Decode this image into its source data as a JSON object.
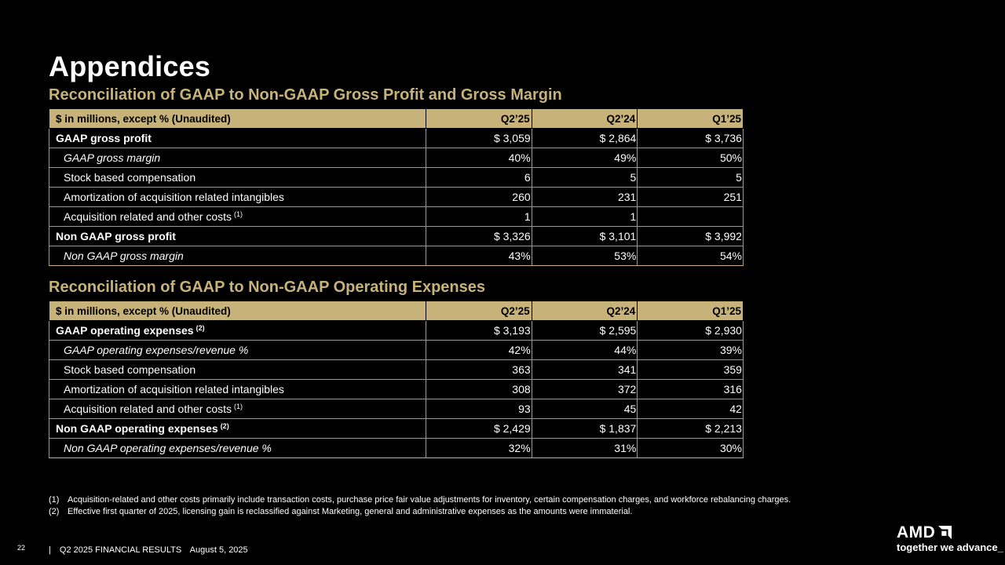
{
  "title": "Appendices",
  "section1": {
    "title": "Reconciliation of GAAP to Non-GAAP Gross Profit and Gross Margin",
    "header": [
      "$ in millions, except % (Unaudited)",
      "Q2’25",
      "Q2’24",
      "Q1’25"
    ],
    "rows": [
      {
        "label": "GAAP gross profit",
        "sup": "",
        "v1": "$ 3,059",
        "v2": "$ 2,864",
        "v3": "$ 3,736"
      },
      {
        "label": "GAAP gross margin",
        "sup": "",
        "v1": "40%",
        "v2": "49%",
        "v3": "50%"
      },
      {
        "label": "Stock based compensation",
        "sup": "",
        "v1": "6",
        "v2": "5",
        "v3": "5"
      },
      {
        "label": "Amortization of acquisition related intangibles",
        "sup": "",
        "v1": "260",
        "v2": "231",
        "v3": "251"
      },
      {
        "label": "Acquisition related and other costs",
        "sup": "(1)",
        "v1": "1",
        "v2": "1",
        "v3": ""
      },
      {
        "label": "Non GAAP gross profit",
        "sup": "",
        "v1": "$ 3,326",
        "v2": "$ 3,101",
        "v3": "$ 3,992"
      },
      {
        "label": "Non GAAP gross margin",
        "sup": "",
        "v1": "43%",
        "v2": "53%",
        "v3": "54%"
      }
    ]
  },
  "section2": {
    "title": "Reconciliation of GAAP to Non-GAAP Operating Expenses",
    "header": [
      "$ in millions, except % (Unaudited)",
      "Q2’25",
      "Q2’24",
      "Q1’25"
    ],
    "rows": [
      {
        "label": "GAAP operating expenses",
        "sup": "(2)",
        "v1": "$ 3,193",
        "v2": "$ 2,595",
        "v3": "$ 2,930"
      },
      {
        "label": "GAAP operating expenses/revenue %",
        "sup": "",
        "v1": "42%",
        "v2": "44%",
        "v3": "39%"
      },
      {
        "label": "Stock based compensation",
        "sup": "",
        "v1": "363",
        "v2": "341",
        "v3": "359"
      },
      {
        "label": "Amortization of acquisition related intangibles",
        "sup": "",
        "v1": "308",
        "v2": "372",
        "v3": "316"
      },
      {
        "label": "Acquisition related and other costs",
        "sup": "(1)",
        "v1": "93",
        "v2": "45",
        "v3": "42"
      },
      {
        "label": "Non GAAP operating expenses",
        "sup": "(2)",
        "v1": "$ 2,429",
        "v2": "$ 1,837",
        "v3": "$ 2,213"
      },
      {
        "label": "Non GAAP operating expenses/revenue %",
        "sup": "",
        "v1": "32%",
        "v2": "31%",
        "v3": "30%"
      }
    ]
  },
  "footnotes": [
    {
      "num": "(1)",
      "text": "Acquisition-related and other costs primarily include transaction costs, purchase price fair value adjustments for inventory, certain compensation charges, and workforce rebalancing charges."
    },
    {
      "num": "(2)",
      "text": "Effective first quarter of 2025, licensing gain is reclassified against Marketing, general and administrative expenses as the amounts were immaterial."
    }
  ],
  "footer": {
    "page_number": "22",
    "separator": "|",
    "report": "Q2 2025 FINANCIAL RESULTS",
    "date": "August 5, 2025"
  },
  "logo": {
    "wordmark": "AMD",
    "tagline": "together we advance_",
    "color": "#ffffff"
  },
  "colors": {
    "accent": "#c7b27a",
    "background": "#000000",
    "text": "#ffffff"
  },
  "icons": [
    "amd-arrow-icon"
  ]
}
